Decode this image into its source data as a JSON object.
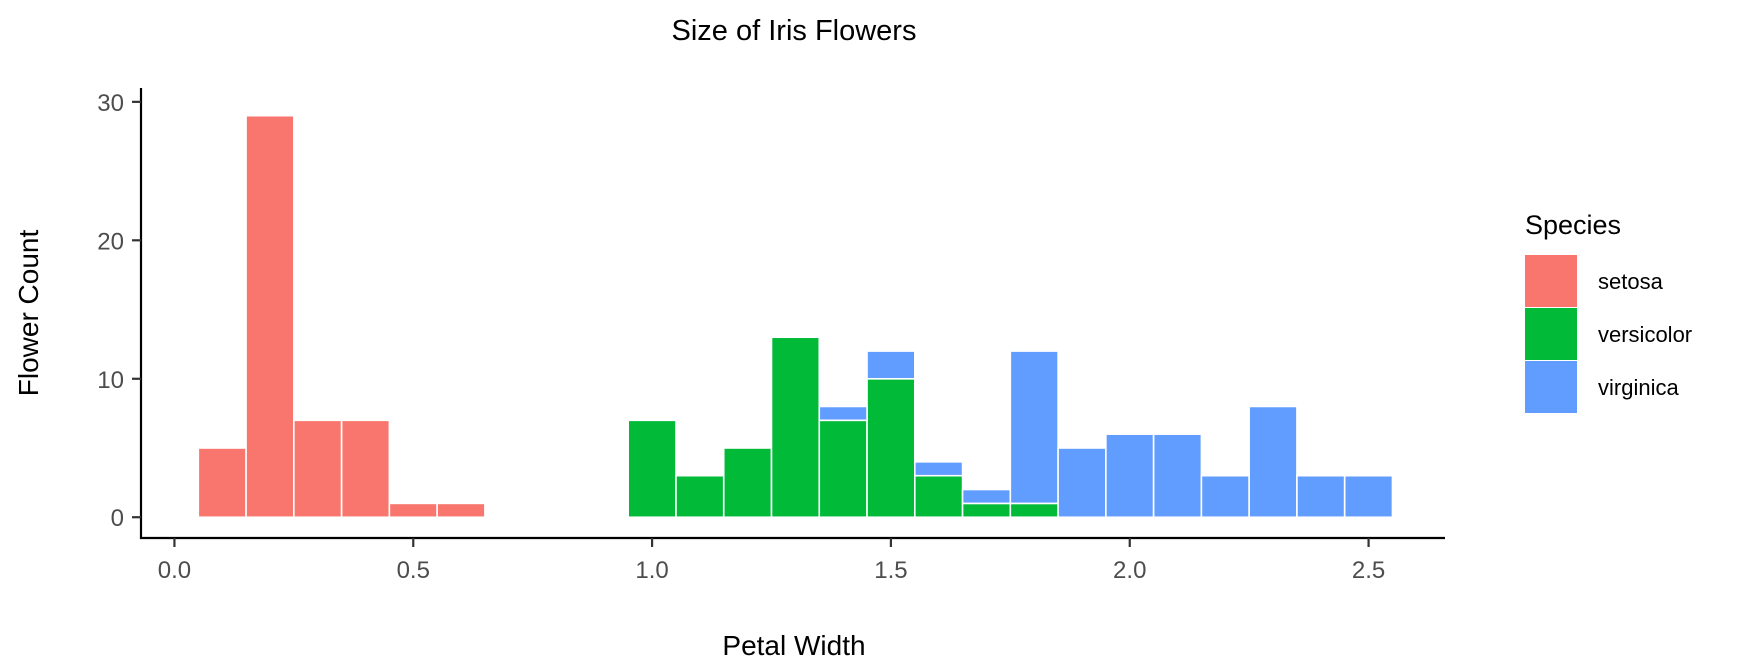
{
  "chart_data": {
    "type": "bar",
    "title": "Size of Iris Flowers",
    "xlabel": "Petal Width",
    "ylabel": "Flower Count",
    "xlim": [
      -0.07,
      2.66
    ],
    "ylim": [
      -1.5,
      31
    ],
    "xticks": [
      {
        "value": 0.0,
        "label": "0.0"
      },
      {
        "value": 0.5,
        "label": "0.5"
      },
      {
        "value": 1.0,
        "label": "1.0"
      },
      {
        "value": 1.5,
        "label": "1.5"
      },
      {
        "value": 2.0,
        "label": "2.0"
      },
      {
        "value": 2.5,
        "label": "2.5"
      }
    ],
    "yticks": [
      {
        "value": 0,
        "label": "0"
      },
      {
        "value": 10,
        "label": "10"
      },
      {
        "value": 20,
        "label": "20"
      },
      {
        "value": 30,
        "label": "30"
      }
    ],
    "bin_width": 0.1,
    "stacked": true,
    "grid": false,
    "legend": {
      "title": "Species",
      "position": "right"
    },
    "series": [
      {
        "name": "setosa",
        "color": "#F8766D",
        "x": [
          0.1,
          0.2,
          0.3,
          0.4,
          0.5,
          0.6
        ],
        "values": [
          5,
          29,
          7,
          7,
          1,
          1
        ]
      },
      {
        "name": "versicolor",
        "color": "#00BA38",
        "x": [
          1.0,
          1.1,
          1.2,
          1.3,
          1.4,
          1.5,
          1.6,
          1.7,
          1.8
        ],
        "values": [
          7,
          3,
          5,
          13,
          7,
          10,
          3,
          1,
          1
        ]
      },
      {
        "name": "virginica",
        "color": "#619CFF",
        "x": [
          1.4,
          1.5,
          1.6,
          1.7,
          1.8,
          1.9,
          2.0,
          2.1,
          2.2,
          2.3,
          2.4,
          2.5
        ],
        "values": [
          1,
          2,
          1,
          1,
          11,
          5,
          6,
          6,
          3,
          8,
          3,
          3
        ]
      }
    ]
  }
}
